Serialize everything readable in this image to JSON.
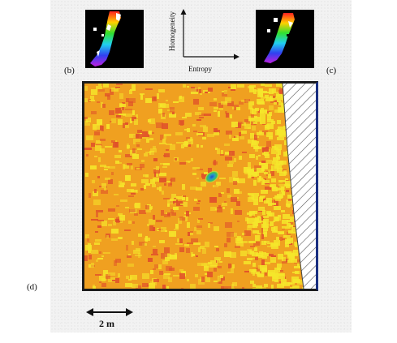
{
  "panels": {
    "b_label": "(b)",
    "c_label": "(c)",
    "d_label": "(d)"
  },
  "axes_diagram": {
    "y_label": "Homogeneity",
    "x_label": "Entropy"
  },
  "scale_bar": {
    "label": "2 m"
  },
  "colors": {
    "map_background": "#f0a020",
    "map_speckle_yellow": "#f5e62a",
    "map_speckle_red": "#e0502a",
    "anomaly_blue": "#1f4fd0",
    "anomaly_green": "#3fbf5a",
    "hatched_region": "#ffffff",
    "inset_background": "#000000"
  },
  "icons": {
    "scale_arrow": "double-headed-arrow-icon",
    "axes": "axes-icon"
  }
}
